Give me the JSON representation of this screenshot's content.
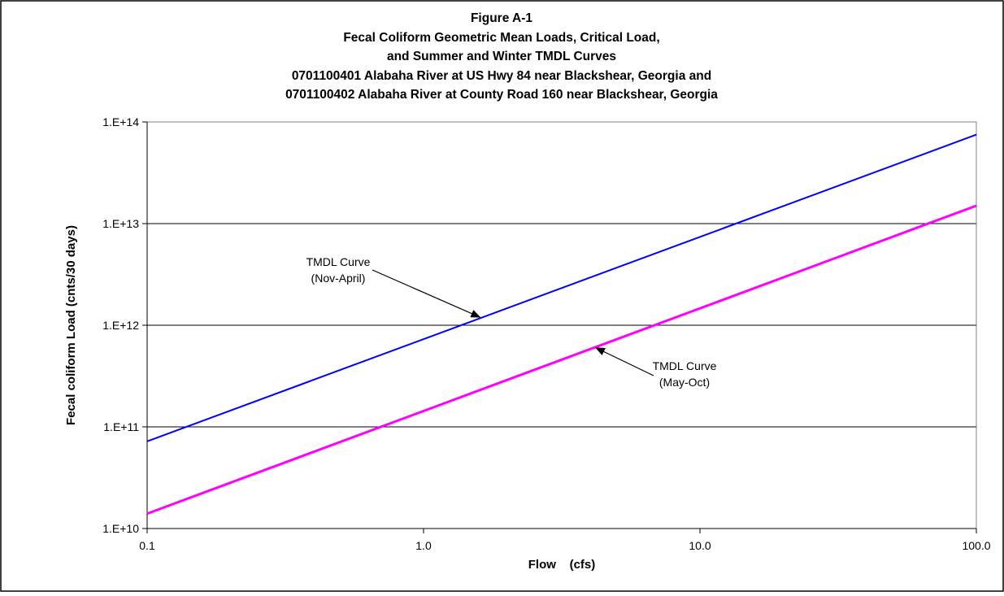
{
  "chart_data": {
    "type": "line",
    "title_lines": [
      "Figure A-1",
      "Fecal Coliform Geometric Mean Loads,  Critical Load,",
      "and Summer and Winter TMDL Curves",
      "0701100401 Alabaha River at US Hwy 84 near Blackshear, Georgia and",
      "0701100402 Alabaha River at County Road 160 near Blackshear, Georgia"
    ],
    "xlabel": "Flow    (cfs)",
    "ylabel": "Fecal coliform Load  (cnts/30 days)",
    "x_scale": "log",
    "y_scale": "log",
    "xlim": [
      0.1,
      100.0
    ],
    "ylim": [
      10000000000,
      100000000000000
    ],
    "x_ticks": [
      {
        "value": 0.1,
        "label": "0.1"
      },
      {
        "value": 1.0,
        "label": "1.0"
      },
      {
        "value": 10.0,
        "label": "10.0"
      },
      {
        "value": 100.0,
        "label": "100.0"
      }
    ],
    "y_ticks": [
      {
        "value": 10000000000,
        "label": "1.E+10"
      },
      {
        "value": 100000000000,
        "label": "1.E+11"
      },
      {
        "value": 1000000000000,
        "label": "1.E+12"
      },
      {
        "value": 10000000000000,
        "label": "1.E+13"
      },
      {
        "value": 100000000000000,
        "label": "1.E+14"
      }
    ],
    "grid": "horizontal major gridlines",
    "series": [
      {
        "key": "nov_april",
        "color": "#0000ff",
        "points": [
          {
            "x": 0.1,
            "y": 72000000000
          },
          {
            "x": 100.0,
            "y": 75000000000000
          }
        ]
      },
      {
        "key": "may_oct",
        "color": "#ff00ff",
        "points": [
          {
            "x": 0.1,
            "y": 14000000000
          },
          {
            "x": 100.0,
            "y": 15000000000000
          }
        ]
      }
    ],
    "annotations": [
      {
        "key": "nov_april_label",
        "lines": [
          "TMDL Curve",
          "(Nov-April)"
        ],
        "series": "nov_april",
        "arrow_to": {
          "x": 1.6,
          "y": 1200000000000
        }
      },
      {
        "key": "may_oct_label",
        "lines": [
          "TMDL Curve",
          "(May-Oct)"
        ],
        "series": "may_oct",
        "arrow_to": {
          "x": 4.2,
          "y": 600000000000
        }
      }
    ]
  }
}
